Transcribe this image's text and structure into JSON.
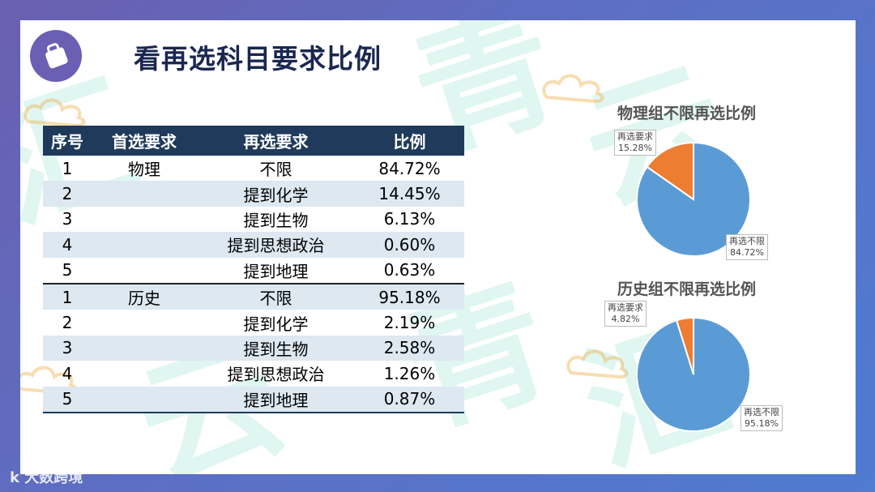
{
  "title": "看再选科目要求比例",
  "icons": {
    "badge": "bag-icon"
  },
  "footer": {
    "brand": "大数跨境",
    "mark": "k"
  },
  "watermark": "青云汇",
  "table": {
    "headers": [
      "序号",
      "首选要求",
      "再选要求",
      "比例"
    ],
    "rows": [
      [
        "1",
        "物理",
        "不限",
        "84.72%"
      ],
      [
        "2",
        "",
        "提到化学",
        "14.45%"
      ],
      [
        "3",
        "",
        "提到生物",
        "6.13%"
      ],
      [
        "4",
        "",
        "提到思想政治",
        "0.60%"
      ],
      [
        "5",
        "",
        "提到地理",
        "0.63%"
      ],
      [
        "1",
        "历史",
        "不限",
        "95.18%"
      ],
      [
        "2",
        "",
        "提到化学",
        "2.19%"
      ],
      [
        "3",
        "",
        "提到生物",
        "2.58%"
      ],
      [
        "4",
        "",
        "提到思想政治",
        "1.26%"
      ],
      [
        "5",
        "",
        "提到地理",
        "0.87%"
      ]
    ]
  },
  "chart_data": [
    {
      "type": "pie",
      "title": "物理组不限再选比例",
      "categories": [
        "再选不限",
        "再选要求"
      ],
      "values": [
        84.72,
        15.28
      ],
      "value_labels": [
        "84.72%",
        "15.28%"
      ],
      "colors": [
        "#5b9bd5",
        "#ed7d31"
      ]
    },
    {
      "type": "pie",
      "title": "历史组不限再选比例",
      "categories": [
        "再选不限",
        "再选要求"
      ],
      "values": [
        95.18,
        4.82
      ],
      "value_labels": [
        "95.18%",
        "4.82%"
      ],
      "colors": [
        "#5b9bd5",
        "#ed7d31"
      ]
    }
  ]
}
